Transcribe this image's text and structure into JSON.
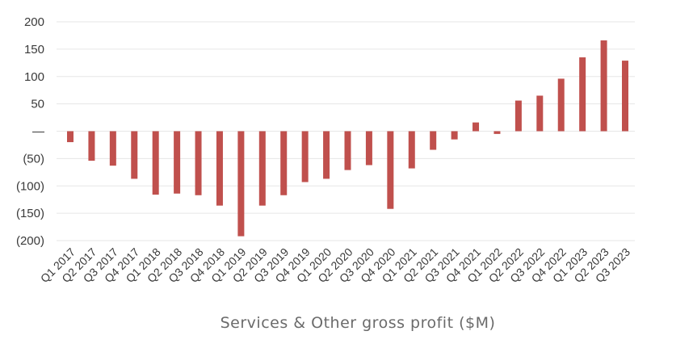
{
  "chart_data": {
    "type": "bar",
    "xlabel": "Services & Other gross profit ($M)",
    "ylabel": "",
    "ylim": [
      -200,
      200
    ],
    "yticks": [
      200,
      150,
      100,
      50,
      0,
      -50,
      -100,
      -150,
      -200
    ],
    "ytick_labels": [
      "200",
      "150",
      "100",
      "50",
      "—",
      "(50)",
      "(100)",
      "(150)",
      "(200)"
    ],
    "grid": true,
    "bar_color": "#c0504d",
    "categories": [
      "Q1 2017",
      "Q2 2017",
      "Q3 2017",
      "Q4 2017",
      "Q1 2018",
      "Q2 2018",
      "Q3 2018",
      "Q4 2018",
      "Q1 2019",
      "Q2 2019",
      "Q3 2019",
      "Q4 2019",
      "Q1 2020",
      "Q2 2020",
      "Q3 2020",
      "Q4 2020",
      "Q1 2021",
      "Q2 2021",
      "Q3 2021",
      "Q4 2021",
      "Q1 2022",
      "Q2 2022",
      "Q3 2022",
      "Q4 2022",
      "Q1 2023",
      "Q2 2023",
      "Q3 2023"
    ],
    "values": [
      -20,
      -54,
      -63,
      -87,
      -116,
      -114,
      -117,
      -136,
      -192,
      -136,
      -117,
      -93,
      -87,
      -71,
      -62,
      -142,
      -68,
      -34,
      -15,
      16,
      -5,
      56,
      65,
      96,
      135,
      166,
      129
    ]
  }
}
